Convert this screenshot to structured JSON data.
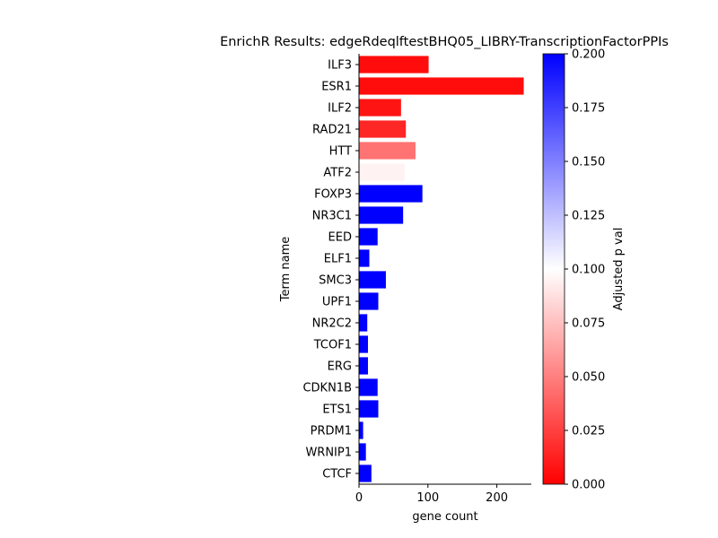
{
  "chart_data": {
    "type": "bar",
    "orientation": "horizontal",
    "title": "EnrichR Results: edgeRdeqlftestBHQ05_LIBRY-TranscriptionFactorPPIs",
    "xlabel": "gene count",
    "ylabel": "Term name",
    "xlim": [
      0,
      250
    ],
    "x_ticks": [
      0,
      100,
      200
    ],
    "categories": [
      "ILF3",
      "ESR1",
      "ILF2",
      "RAD21",
      "HTT",
      "ATF2",
      "FOXP3",
      "NR3C1",
      "EED",
      "ELF1",
      "SMC3",
      "UPF1",
      "NR2C2",
      "TCOF1",
      "ERG",
      "CDKN1B",
      "ETS1",
      "PRDM1",
      "WRNIP1",
      "CTCF"
    ],
    "values": [
      101,
      239,
      61,
      68,
      82,
      66,
      92,
      64,
      27,
      15,
      39,
      28,
      12,
      13,
      13,
      27,
      28,
      6,
      10,
      18
    ],
    "adjusted_p": [
      0.005,
      0.005,
      0.008,
      0.015,
      0.045,
      0.095,
      0.2,
      0.2,
      0.2,
      0.2,
      0.2,
      0.2,
      0.2,
      0.2,
      0.2,
      0.2,
      0.2,
      0.2,
      0.2,
      0.2
    ],
    "colorbar": {
      "label": "Adjusted p val",
      "range": [
        0.0,
        0.2
      ],
      "ticks": [
        "0.000",
        "0.025",
        "0.050",
        "0.075",
        "0.100",
        "0.125",
        "0.150",
        "0.175",
        "0.200"
      ],
      "colormap": [
        "#ff0000",
        "#ffffff",
        "#0000ff"
      ]
    }
  }
}
